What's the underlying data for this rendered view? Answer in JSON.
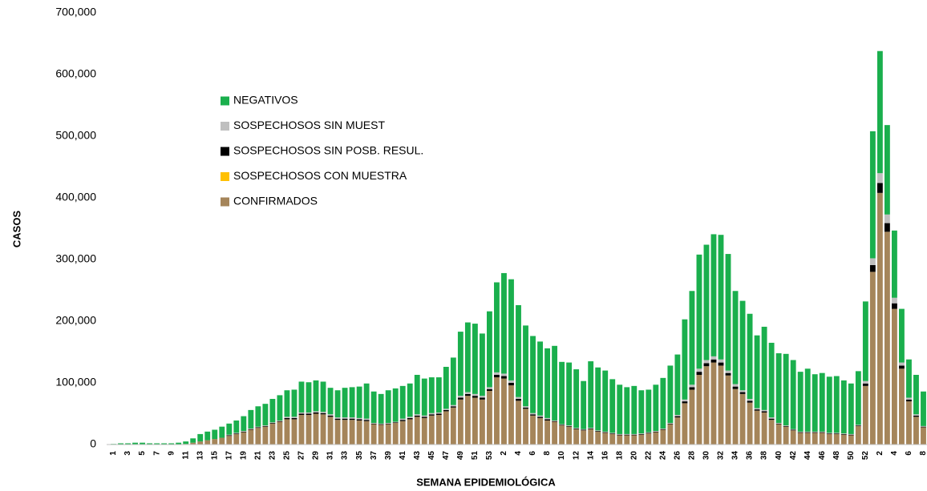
{
  "chart_data": {
    "type": "stacked_bar",
    "x_label": "SEMANA EPIDEMIOLÓGICA",
    "y_label": "CASOS",
    "categories": [
      "1",
      null,
      "3",
      null,
      "5",
      null,
      "7",
      null,
      "9",
      null,
      "11",
      null,
      "13",
      null,
      "15",
      null,
      "17",
      null,
      "19",
      null,
      "21",
      null,
      "23",
      null,
      "25",
      null,
      "27",
      null,
      "29",
      null,
      "31",
      null,
      "33",
      null,
      "35",
      null,
      "37",
      null,
      "39",
      null,
      "41",
      null,
      "43",
      null,
      "45",
      null,
      "47",
      null,
      "49",
      null,
      "51",
      null,
      "53",
      null,
      "2",
      null,
      "4",
      null,
      "6",
      null,
      "8",
      null,
      "10",
      null,
      "12",
      null,
      "14",
      null,
      "16",
      null,
      "18",
      null,
      "20",
      null,
      "22",
      null,
      "24",
      null,
      "26",
      null,
      "28",
      null,
      "30",
      null,
      "32",
      null,
      "34",
      null,
      "36",
      null,
      "38",
      null,
      "40",
      null,
      "42",
      null,
      "44",
      null,
      "46",
      null,
      "48",
      null,
      "50",
      null,
      "52",
      null,
      "2",
      null,
      "4",
      null,
      "6",
      null,
      "8"
    ],
    "series": [
      {
        "name": "CONFIRMADOS",
        "color": "#a5855a",
        "values": [
          0,
          0,
          0,
          0,
          0,
          0,
          0,
          0,
          0,
          0,
          1000,
          3000,
          5000,
          7000,
          9000,
          11000,
          14000,
          17000,
          20000,
          24000,
          27000,
          29000,
          34000,
          37000,
          41000,
          41000,
          48000,
          48000,
          50000,
          49000,
          45000,
          40000,
          40000,
          40000,
          39000,
          38000,
          33000,
          32000,
          33000,
          35000,
          38000,
          41000,
          45000,
          43000,
          47000,
          48000,
          54000,
          60000,
          73000,
          79000,
          76000,
          73000,
          87000,
          109000,
          107000,
          96000,
          71000,
          58000,
          47000,
          43000,
          39000,
          37000,
          31000,
          29000,
          25000,
          23000,
          25000,
          21000,
          19000,
          17000,
          15000,
          15000,
          15000,
          16000,
          18000,
          20000,
          24000,
          33000,
          44000,
          67000,
          89000,
          113000,
          127000,
          133000,
          128000,
          112000,
          90000,
          82000,
          68000,
          55000,
          52000,
          40000,
          33000,
          29000,
          23000,
          19000,
          19000,
          19000,
          19000,
          17000,
          17000,
          16000,
          15000,
          30000,
          95000,
          280000,
          408000,
          345000,
          220000,
          123000,
          70000,
          45000,
          28000
        ]
      },
      {
        "name": "SOSPECHOSOS CON MUESTRA",
        "color": "#ffc000",
        "values": [
          0,
          0,
          0,
          0,
          0,
          0,
          0,
          0,
          0,
          0,
          0,
          0,
          0,
          0,
          0,
          0,
          0,
          0,
          0,
          0,
          0,
          0,
          0,
          0,
          0,
          0,
          0,
          0,
          0,
          0,
          0,
          0,
          0,
          0,
          0,
          0,
          0,
          0,
          0,
          0,
          0,
          0,
          0,
          0,
          0,
          0,
          0,
          0,
          0,
          0,
          0,
          0,
          0,
          0,
          0,
          0,
          0,
          0,
          0,
          0,
          0,
          0,
          0,
          0,
          0,
          0,
          0,
          0,
          0,
          0,
          0,
          0,
          0,
          0,
          0,
          0,
          0,
          0,
          0,
          0,
          0,
          0,
          0,
          0,
          0,
          0,
          0,
          0,
          0,
          0,
          0,
          0,
          0,
          0,
          0,
          0,
          0,
          0,
          0,
          0,
          0,
          0,
          0,
          0,
          0,
          0,
          0,
          0,
          0,
          0,
          0,
          0,
          0
        ]
      },
      {
        "name": "SOSPECHOSOS SIN POSB. RESUL.",
        "color": "#000000",
        "values": [
          0,
          0,
          0,
          0,
          0,
          0,
          0,
          0,
          0,
          0,
          0,
          0,
          0,
          0,
          0,
          0,
          1000,
          1000,
          1000,
          1000,
          1000,
          1000,
          1000,
          1000,
          2000,
          2000,
          2000,
          2000,
          2000,
          2000,
          2000,
          2000,
          2000,
          2000,
          2000,
          2000,
          1000,
          1000,
          1000,
          1000,
          2000,
          2000,
          2000,
          2000,
          2000,
          2000,
          2000,
          2000,
          3000,
          3000,
          3000,
          3000,
          3000,
          4000,
          4000,
          4000,
          3000,
          2000,
          2000,
          2000,
          2000,
          1000,
          1000,
          1000,
          1000,
          1000,
          1000,
          1000,
          1000,
          1000,
          1000,
          1000,
          1000,
          1000,
          1000,
          1000,
          1000,
          1000,
          2000,
          3000,
          4000,
          5000,
          5000,
          5000,
          5000,
          4000,
          4000,
          3000,
          3000,
          2000,
          2000,
          2000,
          1000,
          1000,
          1000,
          1000,
          1000,
          1000,
          1000,
          1000,
          1000,
          1000,
          1000,
          1000,
          4000,
          11000,
          16000,
          14000,
          9000,
          5000,
          3000,
          2000,
          1000
        ]
      },
      {
        "name": "SOSPECHOSOS SIN MUEST",
        "color": "#bfbfbf",
        "values": [
          0,
          0,
          0,
          0,
          0,
          0,
          0,
          0,
          0,
          0,
          0,
          0,
          0,
          0,
          0,
          0,
          1000,
          1000,
          1000,
          1000,
          1000,
          1000,
          1000,
          1000,
          2000,
          2000,
          2000,
          2000,
          2000,
          2000,
          2000,
          2000,
          2000,
          2000,
          2000,
          2000,
          1000,
          1000,
          1000,
          1000,
          2000,
          2000,
          2000,
          2000,
          2000,
          2000,
          2000,
          2000,
          3000,
          3000,
          3000,
          3000,
          3000,
          4000,
          4000,
          4000,
          3000,
          2000,
          2000,
          2000,
          2000,
          1000,
          1000,
          1000,
          1000,
          1000,
          1000,
          1000,
          1000,
          1000,
          1000,
          1000,
          1000,
          1000,
          1000,
          1000,
          1000,
          1000,
          2000,
          3000,
          4000,
          5000,
          5000,
          5000,
          5000,
          4000,
          4000,
          3000,
          3000,
          2000,
          2000,
          2000,
          1000,
          1000,
          1000,
          1000,
          1000,
          1000,
          1000,
          1000,
          1000,
          1000,
          1000,
          1000,
          4000,
          11000,
          16000,
          14000,
          9000,
          5000,
          3000,
          2000,
          1000
        ]
      },
      {
        "name": "NEGATIVOS",
        "color": "#1aaf4d",
        "values": [
          1000,
          2000,
          2000,
          3000,
          3000,
          2000,
          2000,
          2000,
          2000,
          3000,
          4000,
          7000,
          12000,
          14000,
          15000,
          18000,
          18000,
          20000,
          24000,
          30000,
          33000,
          35000,
          38000,
          41000,
          43000,
          44000,
          50000,
          49000,
          50000,
          49000,
          43000,
          44000,
          48000,
          49000,
          51000,
          57000,
          51000,
          48000,
          53000,
          54000,
          53000,
          54000,
          64000,
          60000,
          58000,
          57000,
          68000,
          77000,
          104000,
          113000,
          114000,
          101000,
          123000,
          146000,
          163000,
          164000,
          149000,
          131000,
          125000,
          120000,
          113000,
          121000,
          101000,
          102000,
          95000,
          78000,
          108000,
          102000,
          99000,
          87000,
          80000,
          76000,
          78000,
          70000,
          69000,
          75000,
          82000,
          93000,
          98000,
          130000,
          152000,
          185000,
          187000,
          198000,
          202000,
          189000,
          151000,
          145000,
          138000,
          118000,
          135000,
          121000,
          113000,
          116000,
          112000,
          97000,
          102000,
          93000,
          95000,
          91000,
          92000,
          86000,
          82000,
          87000,
          129000,
          206000,
          198000,
          145000,
          109000,
          87000,
          62000,
          64000,
          56000
        ]
      }
    ],
    "ylim": [
      0,
      700000
    ],
    "yticks": [
      0,
      {
        "value": 100000,
        "label": "100,000"
      },
      {
        "value": 200000,
        "label": "200,000"
      },
      {
        "value": 300000,
        "label": "300,000"
      },
      {
        "value": 400000,
        "label": "400,000"
      },
      {
        "value": 500000,
        "label": "500,000"
      },
      {
        "value": 600000,
        "label": "600,000"
      },
      {
        "value": 700000,
        "label": "700,000"
      }
    ],
    "grid": false,
    "legend": "upper left"
  }
}
